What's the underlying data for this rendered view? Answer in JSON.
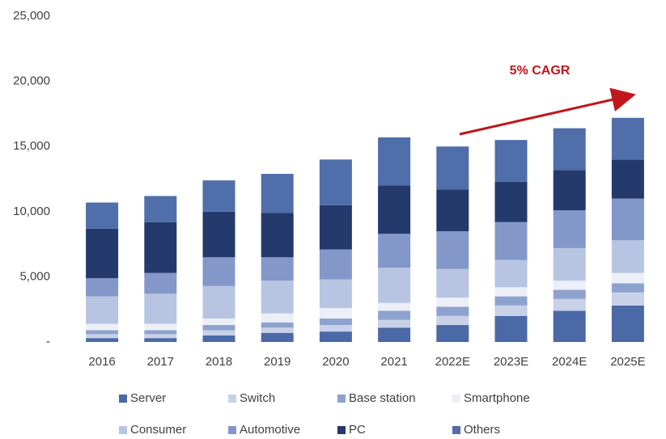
{
  "chart_data": {
    "type": "bar",
    "stacked": true,
    "annotation": "5% CAGR",
    "categories": [
      "2016",
      "2017",
      "2018",
      "2019",
      "2020",
      "2021",
      "2022E",
      "2023E",
      "2024E",
      "2025E"
    ],
    "series": [
      {
        "name": "Server",
        "color": "#4a69a6",
        "values": [
          300,
          300,
          500,
          700,
          800,
          1100,
          1300,
          2000,
          2400,
          2800
        ]
      },
      {
        "name": "Switch",
        "color": "#c9d1e8",
        "values": [
          300,
          300,
          400,
          400,
          500,
          600,
          700,
          800,
          900,
          1000
        ]
      },
      {
        "name": "Base station",
        "color": "#8ea2cf",
        "values": [
          300,
          300,
          400,
          400,
          500,
          700,
          700,
          700,
          700,
          700
        ]
      },
      {
        "name": "Smartphone",
        "color": "#eceff7",
        "values": [
          500,
          500,
          500,
          700,
          800,
          600,
          700,
          700,
          700,
          800
        ]
      },
      {
        "name": "Consumer",
        "color": "#b7c4e2",
        "values": [
          2100,
          2300,
          2500,
          2500,
          2200,
          2700,
          2200,
          2100,
          2500,
          2500
        ]
      },
      {
        "name": "Automotive",
        "color": "#8397c9",
        "values": [
          1400,
          1600,
          2200,
          1800,
          2300,
          2600,
          2900,
          2900,
          2900,
          3200
        ]
      },
      {
        "name": "PC",
        "color": "#243a6c",
        "values": [
          3800,
          3900,
          3500,
          3400,
          3400,
          3700,
          3200,
          3100,
          3100,
          3000
        ]
      },
      {
        "name": "Others",
        "color": "#4f6eaa",
        "values": [
          2000,
          2000,
          2400,
          3000,
          3500,
          3700,
          3300,
          3200,
          3200,
          3200
        ]
      }
    ],
    "ylim": [
      0,
      25000
    ],
    "yticks": [
      {
        "value": 0,
        "label": "-"
      },
      {
        "value": 5000,
        "label": "5,000"
      },
      {
        "value": 10000,
        "label": "10,000"
      },
      {
        "value": 15000,
        "label": "15,000"
      },
      {
        "value": 20000,
        "label": "20,000"
      },
      {
        "value": 25000,
        "label": "25,000"
      }
    ],
    "grid": false
  }
}
